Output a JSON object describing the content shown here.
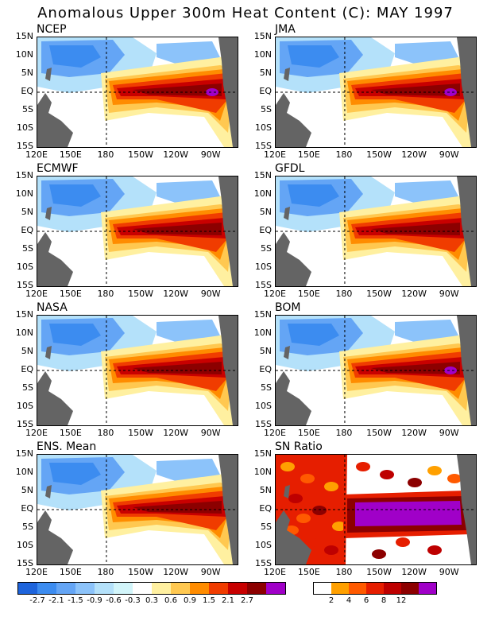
{
  "title": "Anomalous Upper 300m Heat Content (C): MAY 1997",
  "y_ticks": [
    "15N",
    "10N",
    "5N",
    "EQ",
    "5S",
    "10S",
    "15S"
  ],
  "x_ticks": [
    "120E",
    "150E",
    "180",
    "150W",
    "120W",
    "90W"
  ],
  "panels": [
    {
      "name": "NCEP",
      "kind": "anomaly",
      "peak_patch": true
    },
    {
      "name": "JMA",
      "kind": "anomaly",
      "peak_patch": true
    },
    {
      "name": "ECMWF",
      "kind": "anomaly",
      "peak_patch": false
    },
    {
      "name": "GFDL",
      "kind": "anomaly",
      "peak_patch": false
    },
    {
      "name": "NASA",
      "kind": "anomaly",
      "peak_patch": false
    },
    {
      "name": "BOM",
      "kind": "anomaly",
      "peak_patch": true
    },
    {
      "name": "ENS. Mean",
      "kind": "anomaly",
      "peak_patch": false
    },
    {
      "name": "SN Ratio",
      "kind": "ratio",
      "peak_patch": true
    }
  ],
  "anomaly_colorbar": {
    "colors": [
      "#1e64dc",
      "#3c8cf0",
      "#64a5f5",
      "#8cc3fa",
      "#b4e1fa",
      "#d2f5fa",
      "#ffffff",
      "#fff0a0",
      "#ffc850",
      "#ff8c00",
      "#f03c00",
      "#c80000",
      "#8c0000",
      "#a000c8"
    ],
    "labels": [
      "-2.7",
      "-2.1",
      "-1.5",
      "-0.9",
      "-0.6",
      "-0.3",
      "0.3",
      "0.6",
      "0.9",
      "1.5",
      "2.1",
      "2.7"
    ]
  },
  "ratio_colorbar": {
    "colors": [
      "#ffffff",
      "#ffa000",
      "#ff5a00",
      "#e61e00",
      "#be0000",
      "#8c0000",
      "#a000c8"
    ],
    "labels": [
      "2",
      "4",
      "6",
      "8",
      "12"
    ]
  },
  "land_color": "#646464"
}
